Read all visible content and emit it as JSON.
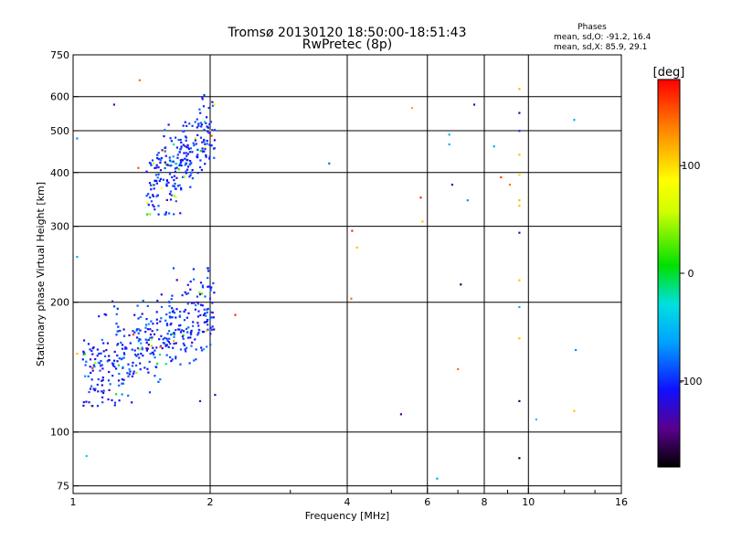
{
  "chart_data": {
    "type": "scatter",
    "title": "Tromsø 20130120 18:50:00-18:51:43",
    "subtitle": "RwPretec (8p)",
    "xlabel": "Frequency [MHz]",
    "ylabel": "Stationary phase Virtual Height [km]",
    "x_scale": "log",
    "y_scale": "log",
    "xlim": [
      1,
      16
    ],
    "ylim": [
      72,
      750
    ],
    "x_ticks": [
      1,
      2,
      4,
      6,
      8,
      10,
      16
    ],
    "x_tick_labels": [
      "1",
      "2",
      "4",
      "6",
      "8",
      "10",
      "16"
    ],
    "x_minor_ticks": [
      3,
      5,
      7,
      9,
      12,
      14
    ],
    "y_ticks": [
      75,
      100,
      200,
      300,
      400,
      500,
      600,
      750
    ],
    "y_tick_labels": [
      "75",
      "100",
      "200",
      "300",
      "400",
      "500",
      "600",
      "750"
    ],
    "grid": true,
    "stats": {
      "heading": "Phases",
      "line_o": "mean, sd,O: -91.2, 16.4",
      "line_x": "mean, sd,X:  85.9, 29.1"
    },
    "colorbar": {
      "label": "[deg]",
      "range": [
        -180,
        180
      ],
      "ticks": [
        100,
        0,
        -100
      ],
      "tick_labels": [
        "100",
        "0",
        "-100"
      ]
    },
    "clusters": [
      {
        "name": "",
        "f_range": [
          1.45,
          2.05
        ],
        "h_range": [
          320,
          610
        ],
        "count": 260,
        "phase_mean": -100,
        "phase_sd": 12
      },
      {
        "name": "",
        "f_range": [
          1.05,
          2.05
        ],
        "h_range": [
          115,
          240
        ],
        "count": 420,
        "phase_mean": -100,
        "phase_sd": 15
      }
    ],
    "points": [
      {
        "f": 1.4,
        "h": 655,
        "phase": 140
      },
      {
        "f": 1.23,
        "h": 575,
        "phase": -140
      },
      {
        "f": 1.39,
        "h": 410,
        "phase": 150
      },
      {
        "f": 1.02,
        "h": 480,
        "phase": -70
      },
      {
        "f": 1.02,
        "h": 255,
        "phase": -60
      },
      {
        "f": 1.02,
        "h": 152,
        "phase": 110
      },
      {
        "f": 1.07,
        "h": 88,
        "phase": -40
      },
      {
        "f": 1.22,
        "h": 201,
        "phase": -140
      },
      {
        "f": 1.94,
        "h": 605,
        "phase": -95
      },
      {
        "f": 2.0,
        "h": 500,
        "phase": 130
      },
      {
        "f": 2.05,
        "h": 122,
        "phase": -130
      },
      {
        "f": 1.9,
        "h": 118,
        "phase": -140
      },
      {
        "f": 2.27,
        "h": 187,
        "phase": 165
      },
      {
        "f": 3.65,
        "h": 420,
        "phase": -80
      },
      {
        "f": 4.1,
        "h": 293,
        "phase": 165
      },
      {
        "f": 4.08,
        "h": 204,
        "phase": 140
      },
      {
        "f": 4.2,
        "h": 268,
        "phase": 110
      },
      {
        "f": 5.25,
        "h": 110,
        "phase": -150
      },
      {
        "f": 5.55,
        "h": 565,
        "phase": 120
      },
      {
        "f": 5.8,
        "h": 350,
        "phase": 165
      },
      {
        "f": 5.85,
        "h": 308,
        "phase": 110
      },
      {
        "f": 6.3,
        "h": 78,
        "phase": -60
      },
      {
        "f": 6.7,
        "h": 490,
        "phase": -50
      },
      {
        "f": 6.7,
        "h": 465,
        "phase": -55
      },
      {
        "f": 6.8,
        "h": 375,
        "phase": -150
      },
      {
        "f": 7.0,
        "h": 140,
        "phase": 140
      },
      {
        "f": 7.1,
        "h": 220,
        "phase": -160
      },
      {
        "f": 7.35,
        "h": 345,
        "phase": -70
      },
      {
        "f": 7.6,
        "h": 575,
        "phase": -120
      },
      {
        "f": 8.4,
        "h": 460,
        "phase": -60
      },
      {
        "f": 8.7,
        "h": 390,
        "phase": 155
      },
      {
        "f": 9.1,
        "h": 375,
        "phase": 140
      },
      {
        "f": 9.55,
        "h": 625,
        "phase": 115
      },
      {
        "f": 9.55,
        "h": 550,
        "phase": -150
      },
      {
        "f": 9.55,
        "h": 500,
        "phase": -100
      },
      {
        "f": 9.55,
        "h": 440,
        "phase": 110
      },
      {
        "f": 9.55,
        "h": 395,
        "phase": 100
      },
      {
        "f": 9.55,
        "h": 345,
        "phase": 115
      },
      {
        "f": 9.55,
        "h": 335,
        "phase": 110
      },
      {
        "f": 9.55,
        "h": 290,
        "phase": -130
      },
      {
        "f": 9.55,
        "h": 225,
        "phase": 110
      },
      {
        "f": 9.55,
        "h": 195,
        "phase": -60
      },
      {
        "f": 9.55,
        "h": 165,
        "phase": 110
      },
      {
        "f": 9.55,
        "h": 118,
        "phase": -160
      },
      {
        "f": 9.55,
        "h": 87,
        "phase": -170
      },
      {
        "f": 10.4,
        "h": 107,
        "phase": -40
      },
      {
        "f": 12.6,
        "h": 530,
        "phase": -60
      },
      {
        "f": 12.7,
        "h": 155,
        "phase": -70
      },
      {
        "f": 12.6,
        "h": 112,
        "phase": 110
      }
    ]
  }
}
